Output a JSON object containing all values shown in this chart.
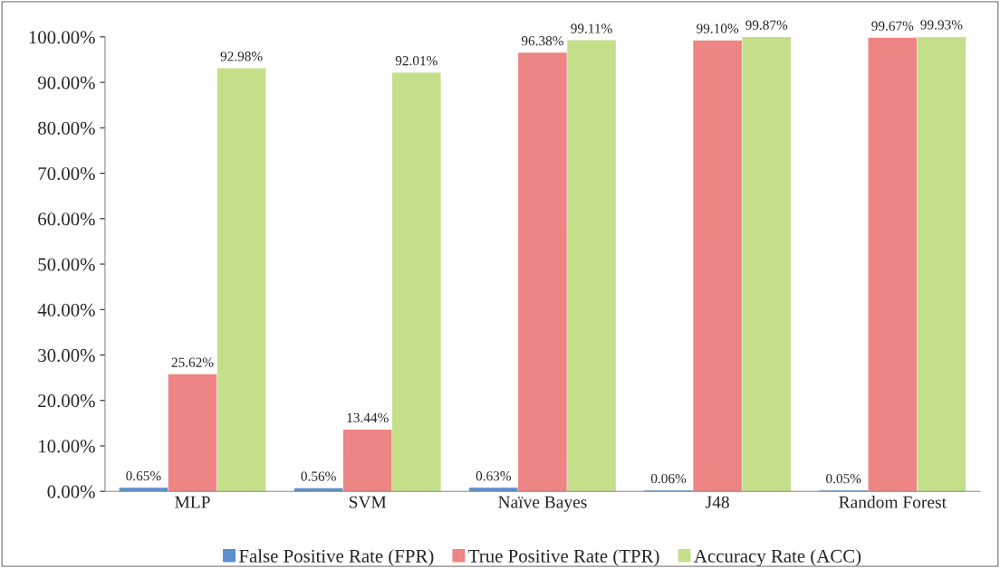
{
  "chart_data": {
    "type": "bar",
    "categories": [
      "MLP",
      "SVM",
      "Naïve Bayes",
      "J48",
      "Random Forest"
    ],
    "series": [
      {
        "name": "False Positive Rate (FPR)",
        "color": "#5b8fce",
        "values": [
          0.65,
          0.56,
          0.63,
          0.06,
          0.05
        ],
        "value_labels": [
          "0.65%",
          "0.56%",
          "0.63%",
          "0.06%",
          "0.05%"
        ]
      },
      {
        "name": "True Positive Rate (TPR)",
        "color": "#ec8583",
        "values": [
          25.62,
          13.44,
          96.38,
          99.1,
          99.67
        ],
        "value_labels": [
          "25.62%",
          "13.44%",
          "96.38%",
          "99.10%",
          "99.67%"
        ]
      },
      {
        "name": "Accuracy Rate (ACC)",
        "color": "#c4df8a",
        "values": [
          92.98,
          92.01,
          99.11,
          99.87,
          99.93
        ],
        "value_labels": [
          "92.98%",
          "92.01%",
          "99.11%",
          "99.87%",
          "99.93%"
        ]
      }
    ],
    "ylim": [
      0,
      100
    ],
    "yticks": [
      {
        "value": 0,
        "label": "0.00%"
      },
      {
        "value": 10,
        "label": "10.00%"
      },
      {
        "value": 20,
        "label": "20.00%"
      },
      {
        "value": 30,
        "label": "30.00%"
      },
      {
        "value": 40,
        "label": "40.00%"
      },
      {
        "value": 50,
        "label": "50.00%"
      },
      {
        "value": 60,
        "label": "60.00%"
      },
      {
        "value": 70,
        "label": "70.00%"
      },
      {
        "value": 80,
        "label": "80.00%"
      },
      {
        "value": 90,
        "label": "90.00%"
      },
      {
        "value": 100,
        "label": "100.00%"
      }
    ],
    "grid": false,
    "legend": "bottom"
  }
}
